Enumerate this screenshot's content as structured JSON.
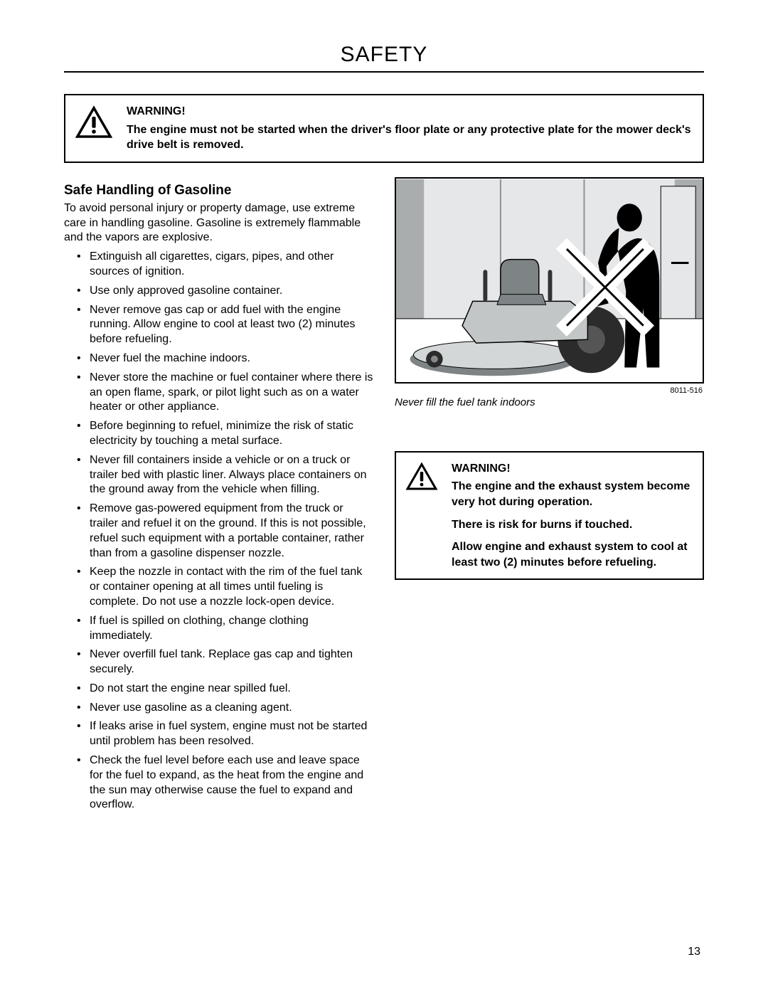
{
  "header": {
    "title": "SAFETY"
  },
  "top_warning": {
    "heading": "WARNING!",
    "body": "The engine must not be started when the driver's floor plate or any protective plate for the mower deck's drive belt is removed."
  },
  "section": {
    "heading": "Safe Handling of Gasoline",
    "intro": "To avoid personal injury or property damage, use extreme care in handling gasoline. Gasoline is extremely flammable and the vapors are explosive.",
    "bullets": [
      "Extinguish all cigarettes, cigars, pipes, and other sources of ignition.",
      "Use only approved gasoline container.",
      "Never remove gas cap or add fuel with the engine running. Allow engine to cool at least two (2) minutes before refueling.",
      "Never fuel the machine indoors.",
      "Never store the machine or fuel container where there is an open flame, spark, or pilot light such as on a water heater or other appliance.",
      "Before beginning to refuel, minimize the risk of static electricity by touching a metal surface.",
      "Never fill containers inside a vehicle or on a truck or trailer bed with plastic liner. Always place containers on the ground away from the vehicle when filling.",
      "Remove gas-powered equipment from the truck or trailer and refuel it on the ground. If this is not possible, refuel such equipment with a portable container, rather than from a gasoline dispenser nozzle.",
      "Keep the nozzle in contact with the rim of the fuel tank or container opening at all times until fueling is complete. Do not use a nozzle lock-open device.",
      "If fuel is spilled on clothing, change clothing immediately.",
      "Never overfill fuel tank. Replace gas cap and tighten securely.",
      "Do not start the engine near spilled fuel.",
      "Never use gasoline as a cleaning agent.",
      "If leaks arise in fuel system, engine must not be started until problem has been resolved.",
      "Check the fuel level before each use and leave space for the fuel to expand, as the heat from the engine and the sun may otherwise cause the fuel to expand and overflow."
    ]
  },
  "figure": {
    "credit": "8011-516",
    "caption": "Never fill the fuel tank indoors",
    "colors": {
      "wall": "#e5e7e8",
      "wall_dark": "#a9adae",
      "floor": "#ffffff",
      "mower_body": "#c2c6c7",
      "mower_dark": "#7e8485",
      "tire": "#2b2b2b",
      "person": "#000000",
      "x_stroke": "#ffffff"
    }
  },
  "right_warning": {
    "heading": "WARNING!",
    "paragraphs": [
      "The engine and the exhaust system become very hot during operation.",
      "There is risk for burns if touched.",
      "Allow engine and exhaust system to cool at least two (2) minutes before refueling."
    ]
  },
  "page_number": "13"
}
